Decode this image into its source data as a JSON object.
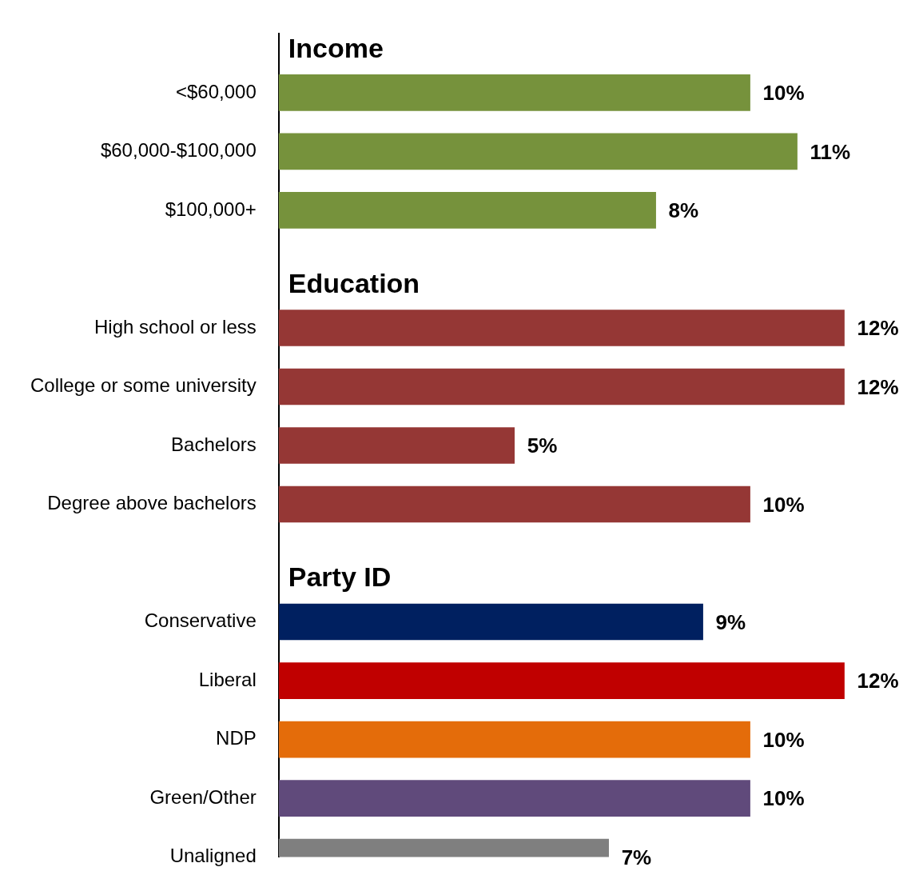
{
  "chart_data": {
    "type": "bar",
    "orientation": "horizontal",
    "categories": [
      null,
      "<$60,000",
      "$60,000-$100,000",
      "$100,000+",
      null,
      "High school or less",
      "College or some university",
      "Bachelors",
      "Degree above bachelors",
      null,
      "Conservative",
      "Liberal",
      "NDP",
      "Green/Other",
      "Unaligned"
    ],
    "values": [
      null,
      10,
      11,
      8,
      null,
      12,
      12,
      5,
      10,
      null,
      9,
      12,
      10,
      10,
      7
    ],
    "colors": [
      null,
      "#76923c",
      "#76923c",
      "#76923c",
      null,
      "#953735",
      "#953735",
      "#953735",
      "#953735",
      null,
      "#002060",
      "#c00000",
      "#e46c0a",
      "#604a7b",
      "#7f7f7f"
    ],
    "value_labels": [
      null,
      "10%",
      "11%",
      "8%",
      null,
      "12%",
      "12%",
      "5%",
      "10%",
      null,
      "9%",
      "12%",
      "10%",
      "10%",
      "7%"
    ],
    "annotations": [
      "Income",
      "Education",
      "Party ID"
    ],
    "grid": false,
    "legend": false,
    "tick_labels": "y"
  }
}
